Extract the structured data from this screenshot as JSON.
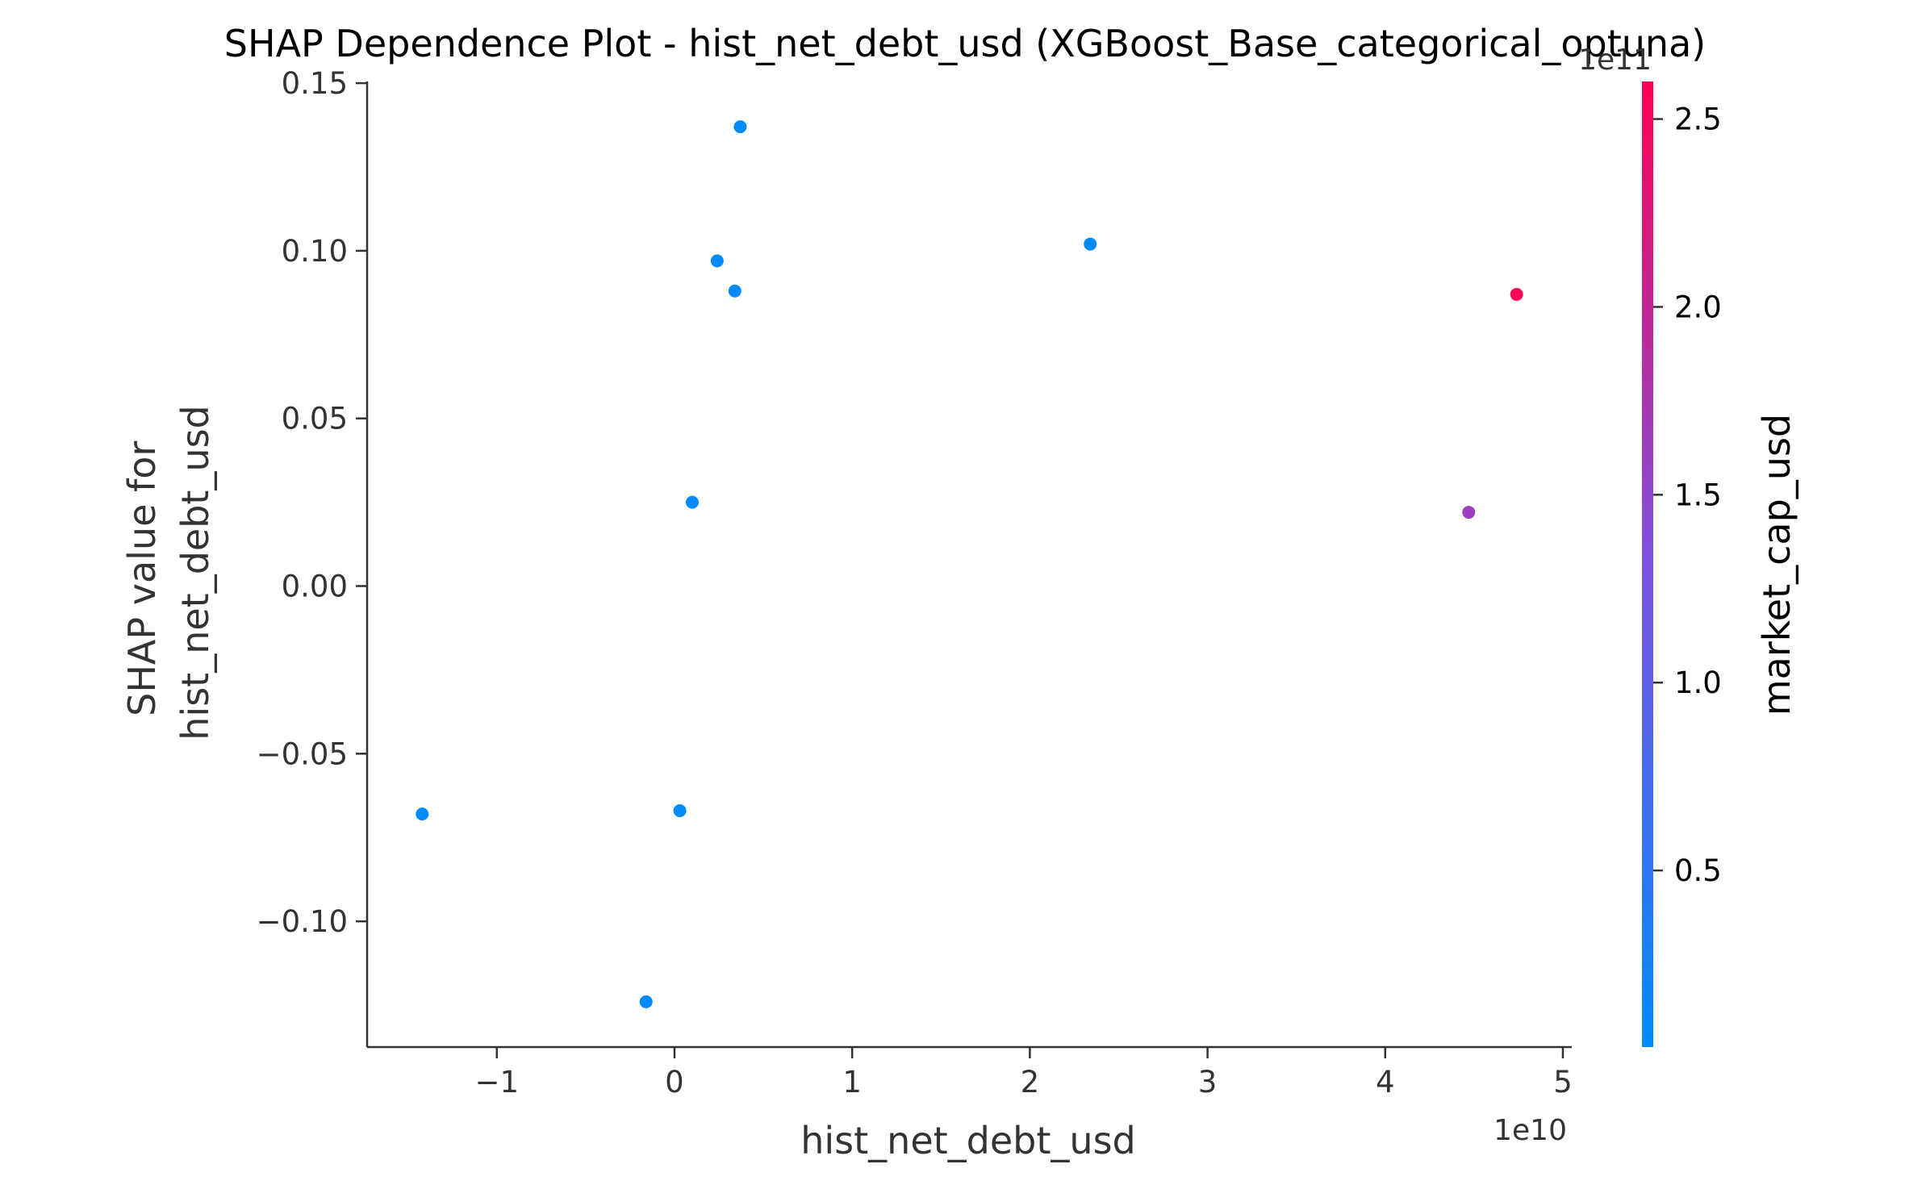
{
  "chart_data": {
    "type": "scatter",
    "title": "SHAP Dependence Plot - hist_net_debt_usd (XGBoost_Base_categorical_optuna)",
    "xlabel": "hist_net_debt_usd",
    "ylabel_lines": [
      "SHAP value for",
      "hist_net_debt_usd"
    ],
    "x_offset_label": "1e10",
    "xlim": [
      -1.73,
      5.05
    ],
    "ylim": [
      -0.1375,
      0.1505
    ],
    "x_ticks": [
      -1,
      0,
      1,
      2,
      3,
      4,
      5
    ],
    "x_tick_labels": [
      "−1",
      "0",
      "1",
      "2",
      "3",
      "4",
      "5"
    ],
    "y_ticks": [
      -0.1,
      -0.05,
      0.0,
      0.05,
      0.1,
      0.15
    ],
    "y_tick_labels": [
      "−0.10",
      "−0.05",
      "0.00",
      "0.05",
      "0.10",
      "0.15"
    ],
    "grid": false,
    "points": [
      {
        "x": -1.42,
        "y": -0.068,
        "color_value": 0.04
      },
      {
        "x": -0.16,
        "y": -0.124,
        "color_value": 0.04
      },
      {
        "x": 0.03,
        "y": -0.067,
        "color_value": 0.04
      },
      {
        "x": 0.1,
        "y": 0.025,
        "color_value": 0.04
      },
      {
        "x": 0.24,
        "y": 0.097,
        "color_value": 0.04
      },
      {
        "x": 0.34,
        "y": 0.088,
        "color_value": 0.04
      },
      {
        "x": 0.37,
        "y": 0.137,
        "color_value": 0.04
      },
      {
        "x": 2.34,
        "y": 0.102,
        "color_value": 0.04
      },
      {
        "x": 4.47,
        "y": 0.022,
        "color_value": 1.62
      },
      {
        "x": 4.74,
        "y": 0.087,
        "color_value": 2.55
      }
    ],
    "colorbar": {
      "label": "market_cap_usd",
      "offset_label": "1e11",
      "range": [
        0.03,
        2.6
      ],
      "ticks": [
        0.5,
        1.0,
        1.5,
        2.0,
        2.5
      ],
      "tick_labels": [
        "0.5",
        "1.0",
        "1.5",
        "2.0",
        "2.5"
      ],
      "color_low": "#008afb",
      "color_mid": "#7c52e0",
      "color_high": "#ff0052"
    },
    "axis_color": "#333333"
  }
}
